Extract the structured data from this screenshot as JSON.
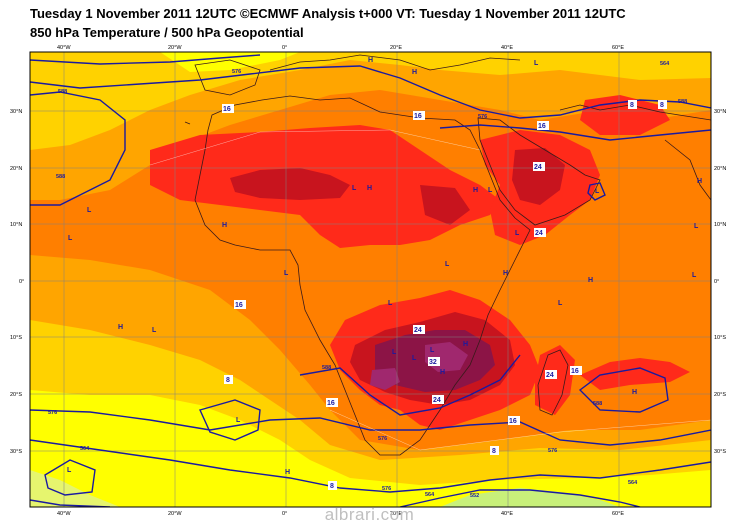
{
  "header": {
    "title_line1": "Tuesday 1 November 2011 12UTC ©ECMWF Analysis t+000 VT: Tuesday 1 November 2011 12UTC",
    "title_line2": "850 hPa Temperature / 500 hPa Geopotential"
  },
  "axes": {
    "lon_top": [
      "40°W",
      "20°W",
      "0°",
      "20°E",
      "40°E",
      "60°E"
    ],
    "lon_bottom": [
      "40°W",
      "20°W",
      "0°",
      "20°E",
      "40°E",
      "60°E"
    ],
    "lat_left": [
      "30°N",
      "20°N",
      "10°N",
      "0°",
      "10°S",
      "20°S",
      "30°S"
    ],
    "lat_right": [
      "30°N",
      "20°N",
      "10°N",
      "0°",
      "10°S",
      "20°S",
      "30°S"
    ]
  },
  "temperature_labels": [
    "16",
    "16",
    "16",
    "24",
    "24",
    "24",
    "16",
    "24",
    "16",
    "8",
    "16",
    "24",
    "16",
    "8",
    "8",
    "8",
    "8",
    "32"
  ],
  "geopotential_labels": [
    "576",
    "588",
    "588",
    "576",
    "564",
    "588",
    "576",
    "564",
    "552",
    "576",
    "564",
    "576",
    "564",
    "576",
    "588",
    "588"
  ],
  "pressure_centers": [
    "H",
    "H",
    "L",
    "L",
    "H",
    "L",
    "L",
    "H",
    "L",
    "H",
    "L",
    "L",
    "H",
    "L",
    "H",
    "H",
    "L",
    "L",
    "L",
    "L",
    "L",
    "H",
    "L",
    "L",
    "H",
    "H",
    "L",
    "L",
    "H",
    "L",
    "L",
    "H"
  ],
  "watermark": "albrari.com",
  "colors": {
    "t_cold": "#c8f07a",
    "t_yellow": "#ffff00",
    "t_gold": "#ffd200",
    "t_orange1": "#ffa500",
    "t_orange2": "#ff7f00",
    "t_red": "#ff2a1a",
    "t_darkred": "#c8141e",
    "t_maroon": "#8c1446",
    "t_purple": "#a0286e",
    "contour": "#1a1aa0",
    "coast": "#3a1a1a"
  }
}
